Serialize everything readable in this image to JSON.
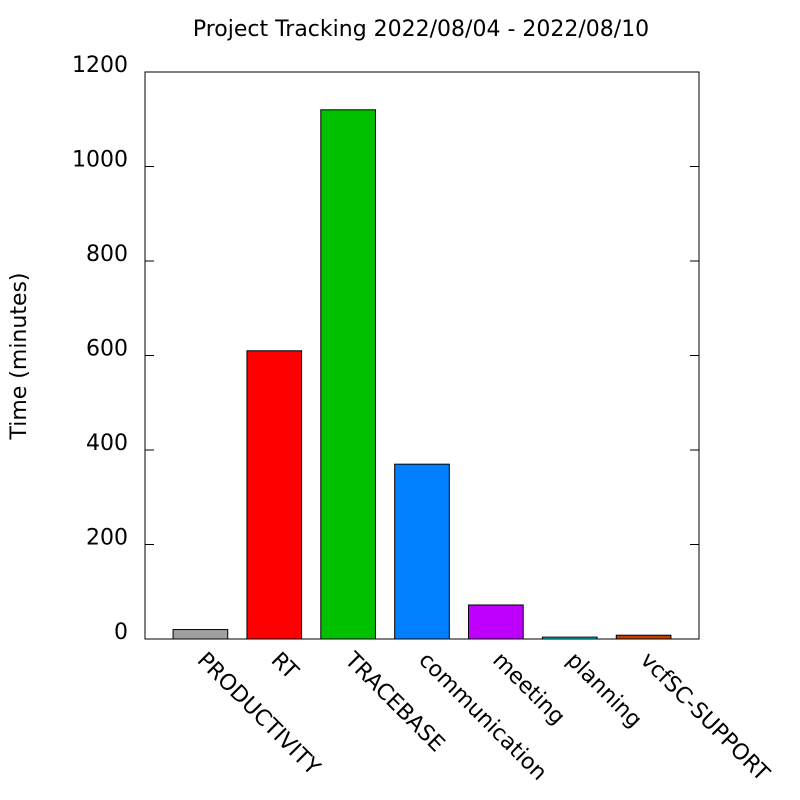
{
  "chart_data": {
    "type": "bar",
    "title": "Project Tracking 2022/08/04 - 2022/08/10",
    "y_label": "Time (minutes)",
    "categories": [
      "PRODUCTIVITY",
      "RT",
      "TRACEBASE",
      "communication",
      "meeting",
      "planning",
      "vcfSC-SUPPORT"
    ],
    "values": [
      20,
      610,
      1120,
      370,
      72,
      4,
      8
    ],
    "colors": [
      "#a0a0a0",
      "#ff0000",
      "#00c000",
      "#0080ff",
      "#c000ff",
      "#00eeee",
      "#c04000"
    ],
    "ylim": [
      0,
      1200
    ],
    "yticks": [
      0,
      200,
      400,
      600,
      800,
      1000,
      1200
    ]
  }
}
